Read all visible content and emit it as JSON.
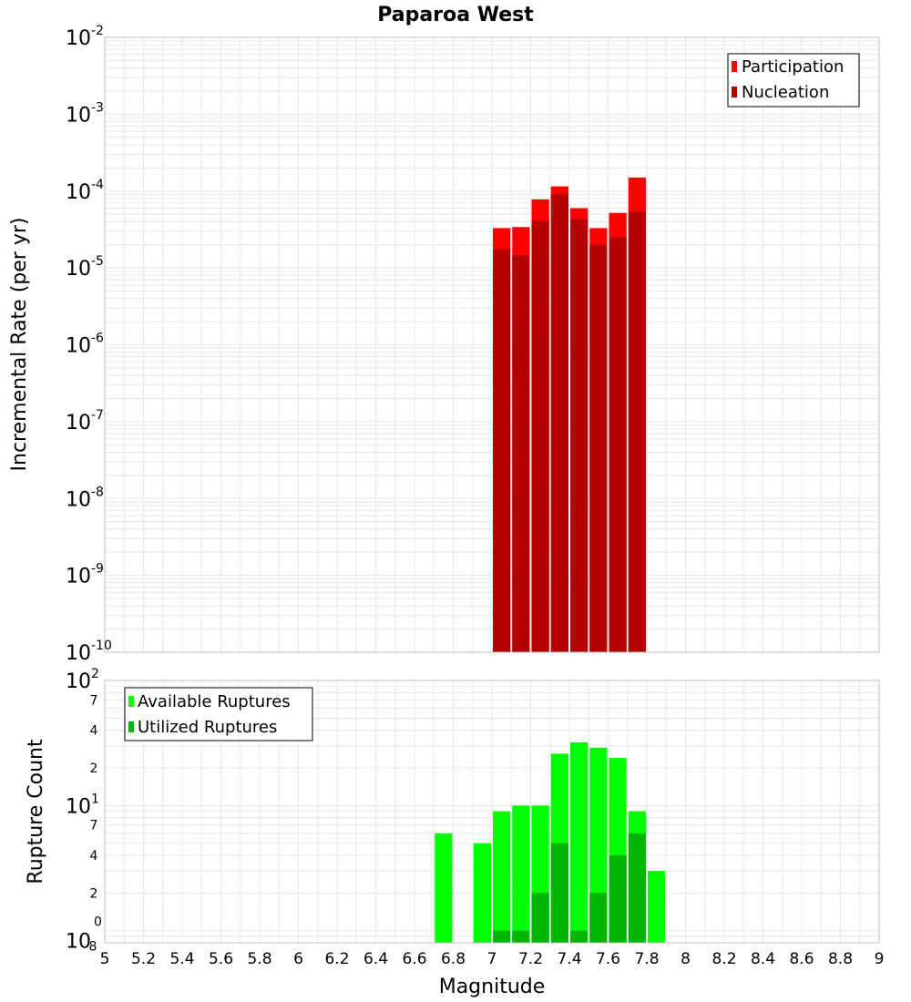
{
  "chart_data": [
    {
      "type": "bar",
      "title": "Paparoa West",
      "xlabel": "",
      "ylabel": "Incremental Rate (per yr)",
      "yscale": "log",
      "xlim": [
        5,
        9
      ],
      "ylim": [
        1e-10,
        0.01
      ],
      "grid": true,
      "legend_position": "top-right",
      "bar_width": 0.1,
      "x": [
        7.05,
        7.15,
        7.25,
        7.35,
        7.45,
        7.55,
        7.65,
        7.75
      ],
      "series": [
        {
          "name": "Participation",
          "color": "#ff0000",
          "values": [
            3.3e-05,
            3.4e-05,
            7.8e-05,
            0.000115,
            6e-05,
            3.3e-05,
            5.2e-05,
            0.00015
          ]
        },
        {
          "name": "Nucleation",
          "color": "#b40000",
          "values": [
            1.75e-05,
            1.45e-05,
            4.1e-05,
            9.2e-05,
            4.3e-05,
            2e-05,
            2.5e-05,
            5.4e-05
          ]
        }
      ],
      "y_major_ticks": [
        "-2",
        "-3",
        "-4",
        "-5",
        "-6",
        "-7",
        "-8",
        "-9",
        "-10"
      ]
    },
    {
      "type": "bar",
      "title": "",
      "xlabel": "Magnitude",
      "ylabel": "Rupture Count",
      "yscale": "log",
      "xlim": [
        5,
        9
      ],
      "ylim": [
        0.8,
        100
      ],
      "grid": true,
      "legend_position": "top-left",
      "bar_width": 0.1,
      "x": [
        6.75,
        6.95,
        7.05,
        7.15,
        7.25,
        7.35,
        7.45,
        7.55,
        7.65,
        7.75,
        7.85
      ],
      "series": [
        {
          "name": "Available Ruptures",
          "color": "#00ff00",
          "values": [
            6,
            5,
            9,
            10,
            10,
            26,
            32,
            29,
            24,
            9,
            3
          ]
        },
        {
          "name": "Utilized Ruptures",
          "color": "#00b400",
          "values": [
            0,
            0,
            1,
            1,
            2,
            5,
            1,
            2,
            4,
            6,
            0
          ]
        }
      ],
      "y_major_ticks": [
        "2",
        "1"
      ],
      "y_major_base": "10",
      "y_minor_ticks": [
        7,
        4,
        2
      ],
      "y_bottom_exponent": "0",
      "y_bottom_minor": "8",
      "x_ticks": [
        "5",
        "5.2",
        "5.4",
        "5.6",
        "5.8",
        "6",
        "6.2",
        "6.4",
        "6.6",
        "6.8",
        "7",
        "7.2",
        "7.4",
        "7.6",
        "7.8",
        "8",
        "8.2",
        "8.4",
        "8.6",
        "8.8",
        "9"
      ]
    }
  ],
  "colors": {
    "grid": "#e8e8e8",
    "frame": "#bfbfbf",
    "legend_border": "#000000"
  }
}
